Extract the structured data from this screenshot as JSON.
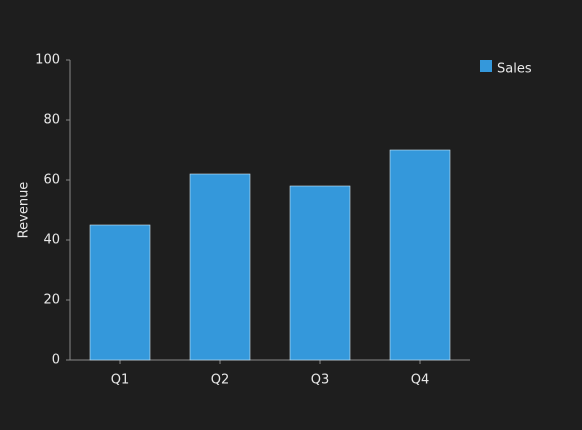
{
  "chart_data": {
    "type": "bar",
    "y_label": "Revenue",
    "categories": [
      "Q1",
      "Q2",
      "Q3",
      "Q4"
    ],
    "series": [
      {
        "name": "Sales",
        "color": "#3498db",
        "values": [
          45,
          62,
          58,
          70
        ]
      }
    ],
    "ylim": [
      0,
      100
    ],
    "yticks": [
      0,
      20,
      40,
      60,
      80,
      100
    ],
    "grid": false,
    "legend": "top-right"
  }
}
